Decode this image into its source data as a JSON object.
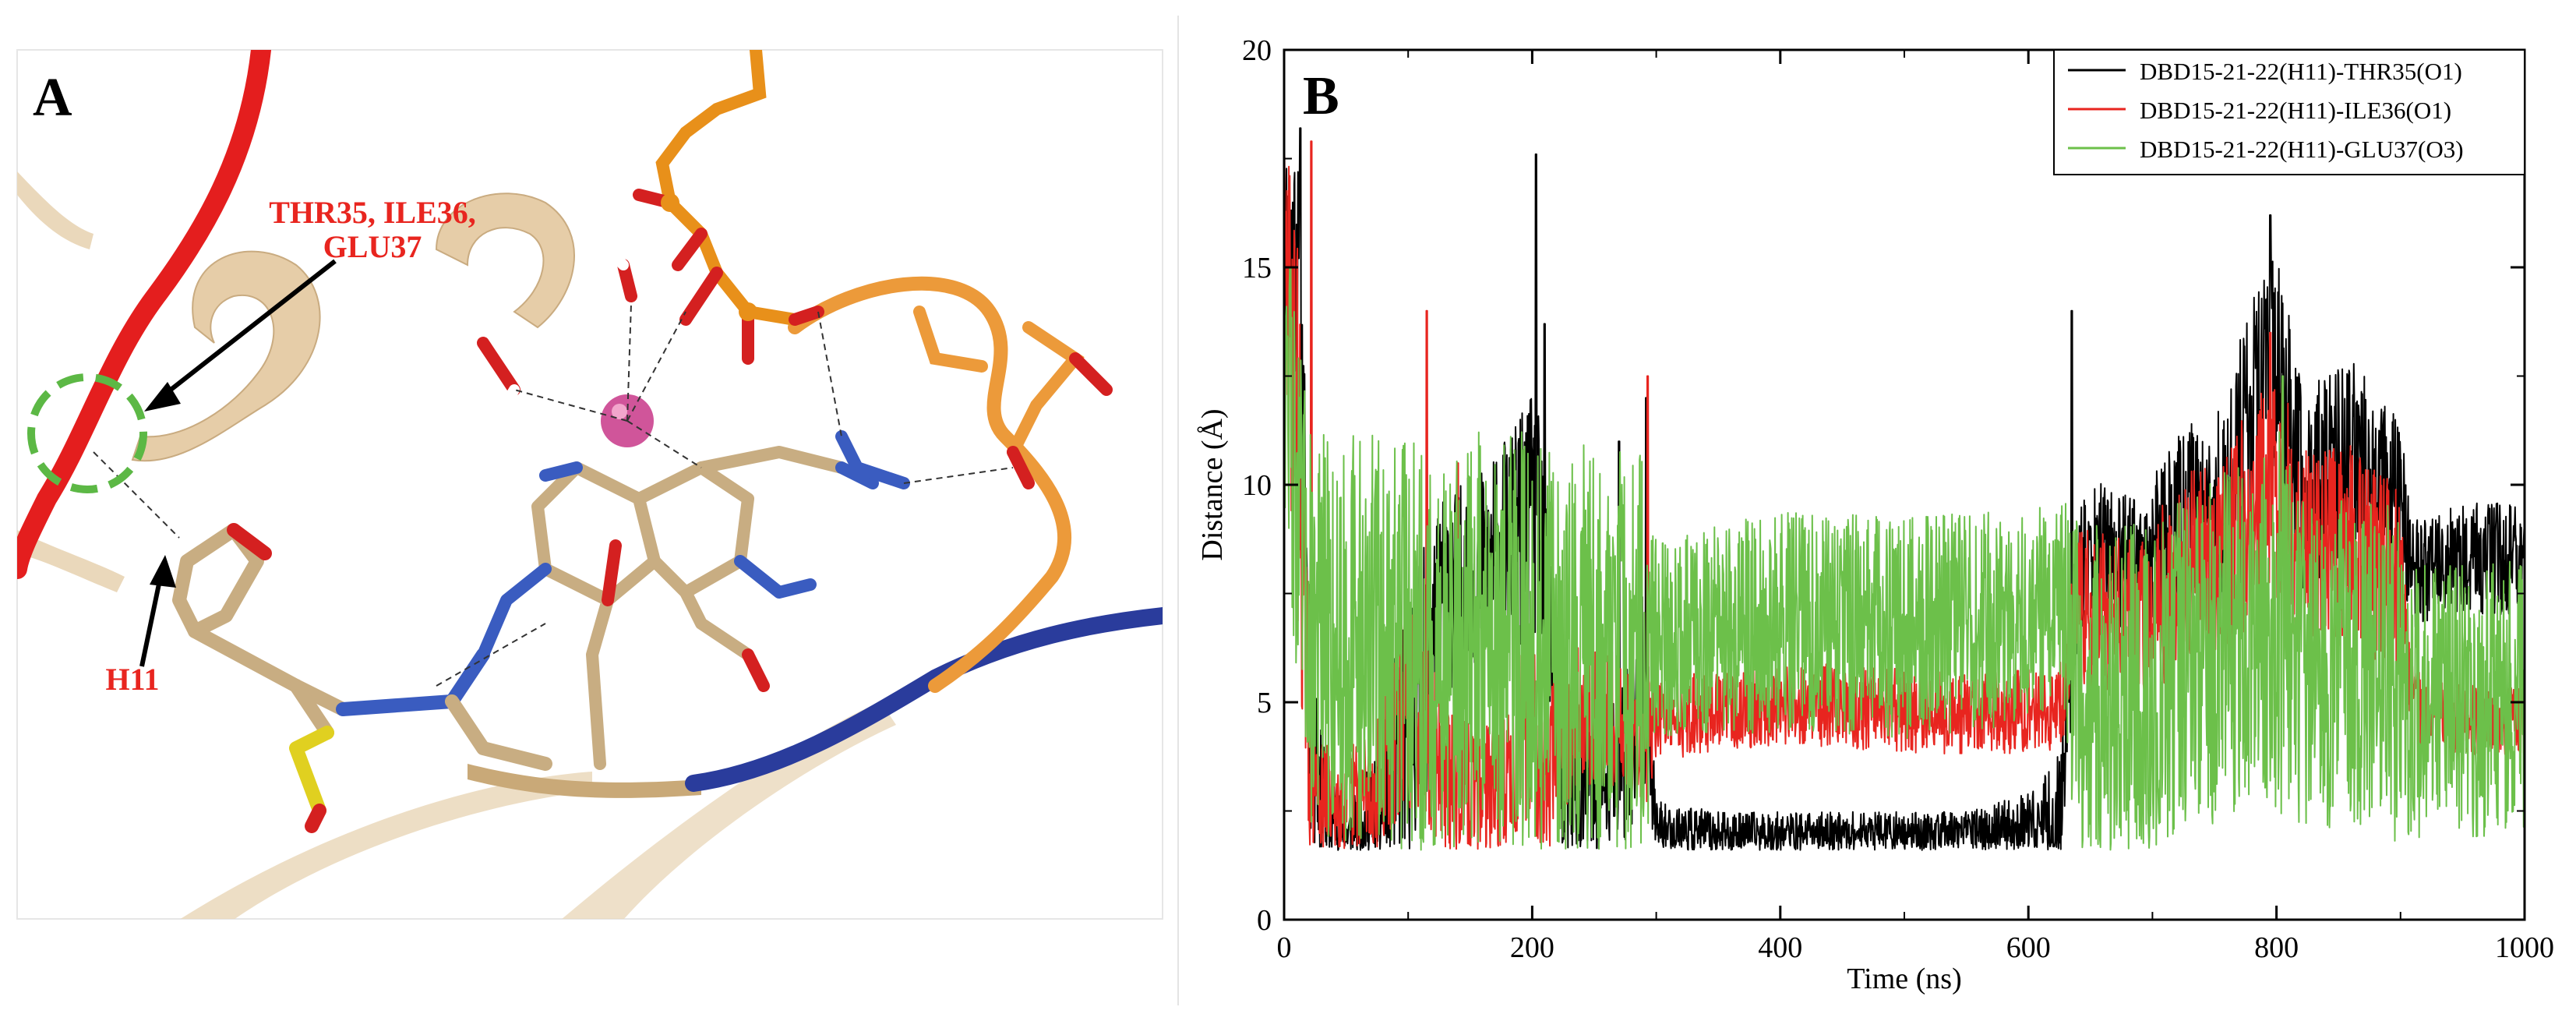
{
  "panel_a": {
    "letter": "A",
    "residue_label_line1": "THR35, ILE36,",
    "residue_label_line2": "GLU37",
    "ligand_label": "H11"
  },
  "panel_b": {
    "letter": "B"
  },
  "colors": {
    "black_series": "#000000",
    "red_series": "#e8251f",
    "green_series": "#6cc04a",
    "ribbon_red": "#e41e1e",
    "ribbon_blue": "#2a3c9c",
    "ribbon_orange": "#ec9a3a",
    "ribbon_tan": "#e8d2b0",
    "carbon_tan": "#c8ad82",
    "nitrogen_blue": "#3a5cc0",
    "oxygen_red": "#d42020",
    "phosphorus_orange": "#e8901a",
    "sulfur_yellow": "#e0d020",
    "metal_magenta": "#d0559a"
  },
  "chart_data": {
    "type": "line",
    "xlabel": "Time (ns)",
    "ylabel": "Distance (Å)",
    "xlim": [
      0,
      1000
    ],
    "ylim": [
      0,
      20
    ],
    "x_ticks": [
      0,
      200,
      400,
      600,
      800,
      1000
    ],
    "y_ticks": [
      0,
      5,
      10,
      15,
      20
    ],
    "legend_position": "top-right",
    "grid": false,
    "series": [
      {
        "name": "DBD15-21-22(H11)-THR35(O1)",
        "color": "#000000",
        "x": [
          0,
          10,
          20,
          30,
          50,
          75,
          100,
          110,
          130,
          150,
          175,
          200,
          210,
          225,
          250,
          275,
          290,
          300,
          350,
          400,
          450,
          500,
          550,
          600,
          625,
          640,
          660,
          690,
          720,
          750,
          780,
          800,
          820,
          860,
          900,
          910,
          950,
          1000
        ],
        "mean": [
          15.5,
          15.5,
          6.0,
          2.6,
          1.9,
          2.3,
          4.5,
          5.2,
          7.5,
          7.8,
          8.5,
          9.2,
          8.0,
          3.5,
          2.8,
          3.8,
          5.5,
          2.1,
          2.0,
          2.0,
          2.0,
          2.0,
          2.0,
          2.1,
          2.2,
          8.0,
          8.5,
          8.0,
          9.0,
          9.0,
          11.0,
          13.0,
          10.0,
          10.5,
          9.5,
          8.0,
          8.3,
          8.3
        ],
        "spread": [
          1.5,
          2.0,
          2.5,
          1.0,
          0.4,
          1.0,
          2.0,
          2.0,
          1.5,
          1.5,
          1.5,
          1.8,
          2.0,
          1.5,
          1.0,
          1.5,
          1.5,
          0.4,
          0.3,
          0.3,
          0.3,
          0.3,
          0.3,
          0.5,
          1.0,
          1.0,
          1.0,
          1.0,
          1.5,
          1.5,
          2.0,
          1.5,
          1.5,
          1.5,
          1.2,
          0.8,
          0.8,
          0.8
        ],
        "peaks": [
          [
            13,
            18.2
          ],
          [
            203,
            17.6
          ],
          [
            210,
            13.7
          ],
          [
            270,
            11.0
          ],
          [
            292,
            12.0
          ],
          [
            635,
            14.0
          ],
          [
            795,
            16.2
          ]
        ]
      },
      {
        "name": "DBD15-21-22(H11)-ILE36(O1)",
        "color": "#e8251f",
        "x": [
          0,
          10,
          20,
          30,
          50,
          75,
          100,
          110,
          130,
          150,
          175,
          200,
          210,
          225,
          250,
          275,
          290,
          300,
          350,
          400,
          450,
          500,
          550,
          600,
          625,
          640,
          660,
          690,
          720,
          750,
          780,
          800,
          820,
          860,
          900,
          910,
          950,
          1000
        ],
        "mean": [
          15.0,
          12.0,
          4.0,
          2.8,
          2.8,
          3.0,
          5.0,
          4.8,
          3.2,
          3.0,
          3.0,
          4.5,
          3.2,
          4.5,
          4.8,
          4.5,
          4.0,
          4.6,
          4.8,
          5.0,
          4.9,
          4.8,
          4.7,
          4.8,
          4.8,
          7.0,
          7.2,
          6.8,
          8.0,
          8.0,
          9.0,
          10.0,
          8.5,
          8.5,
          7.5,
          5.0,
          4.6,
          4.6
        ],
        "spread": [
          2.0,
          3.0,
          1.5,
          0.8,
          0.8,
          1.0,
          1.5,
          1.5,
          1.0,
          1.0,
          1.0,
          1.5,
          1.2,
          1.2,
          1.0,
          1.0,
          1.0,
          0.6,
          0.6,
          0.6,
          0.6,
          0.6,
          0.6,
          0.6,
          0.6,
          1.2,
          1.2,
          1.2,
          1.5,
          1.5,
          1.8,
          1.8,
          1.5,
          1.5,
          1.5,
          0.6,
          0.5,
          0.5
        ],
        "peaks": [
          [
            22,
            17.9
          ],
          [
            115,
            14.0
          ],
          [
            140,
            10.5
          ],
          [
            293,
            12.5
          ],
          [
            795,
            13.5
          ]
        ]
      },
      {
        "name": "DBD15-21-22(H11)-GLU37(O3)",
        "color": "#6cc04a",
        "x": [
          0,
          10,
          20,
          30,
          50,
          75,
          100,
          110,
          130,
          150,
          175,
          200,
          210,
          225,
          250,
          275,
          290,
          300,
          350,
          400,
          450,
          500,
          550,
          600,
          625,
          640,
          660,
          690,
          720,
          750,
          780,
          800,
          820,
          860,
          900,
          910,
          950,
          1000
        ],
        "mean": [
          13.0,
          9.5,
          7.0,
          6.5,
          6.5,
          6.5,
          6.3,
          6.0,
          6.0,
          6.5,
          6.5,
          6.5,
          6.0,
          6.0,
          6.2,
          6.0,
          6.0,
          6.5,
          6.7,
          6.8,
          6.8,
          6.7,
          6.8,
          7.0,
          7.2,
          5.5,
          5.0,
          5.2,
          5.8,
          6.2,
          6.5,
          7.0,
          5.8,
          5.8,
          5.5,
          5.0,
          5.0,
          5.2
        ],
        "spread": [
          2.0,
          2.5,
          3.0,
          3.0,
          3.0,
          3.0,
          3.0,
          3.0,
          3.0,
          3.0,
          3.0,
          3.0,
          3.0,
          3.0,
          3.0,
          3.0,
          3.0,
          1.5,
          1.5,
          1.6,
          1.6,
          1.6,
          1.6,
          1.5,
          1.5,
          2.5,
          2.5,
          2.5,
          2.5,
          2.5,
          2.5,
          2.8,
          2.5,
          2.5,
          2.5,
          2.0,
          2.0,
          2.0
        ],
        "peaks": [
          [
            5,
            15.0
          ],
          [
            805,
            12.5
          ]
        ]
      }
    ]
  }
}
